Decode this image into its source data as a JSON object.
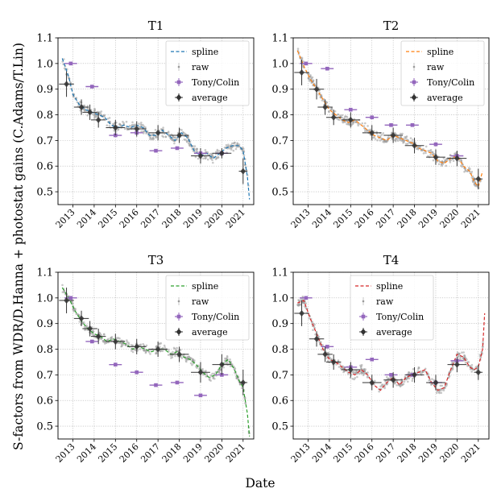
{
  "figure": {
    "ylabel": "S-factors from WDR/D.Hanna + photostat gains (C.Adams/T.Lin)",
    "xlabel": "Date",
    "legend": {
      "spline": "spline",
      "raw": "raw",
      "tony": "Tony/Colin",
      "average": "average"
    },
    "colors": {
      "raw": "#9a9a9a",
      "tony": "#9467bd",
      "average": "#333333",
      "grid": "#b0b0b0"
    }
  },
  "chart_data": [
    {
      "type": "scatter",
      "title": "T1",
      "spline_color": "#1f77b4",
      "legend_position": "top-right",
      "ylim": [
        0.45,
        1.1
      ],
      "xlim": [
        2012.3,
        2021.5
      ],
      "yticks": [
        "0.5",
        "0.6",
        "0.7",
        "0.8",
        "0.9",
        "1.0",
        "1.1"
      ],
      "xticks": [
        "2013",
        "2014",
        "2015",
        "2016",
        "2017",
        "2018",
        "2019",
        "2020",
        "2021"
      ],
      "grid": true,
      "series": [
        {
          "name": "spline",
          "kind": "line",
          "x": [
            2012.5,
            2012.8,
            2013.0,
            2013.3,
            2013.6,
            2013.9,
            2014.2,
            2014.5,
            2014.8,
            2015.1,
            2015.4,
            2015.7,
            2016.0,
            2016.3,
            2016.6,
            2016.9,
            2017.2,
            2017.5,
            2017.8,
            2018.1,
            2018.4,
            2018.7,
            2019.0,
            2019.3,
            2019.6,
            2019.9,
            2020.2,
            2020.5,
            2020.8,
            2021.0,
            2021.2,
            2021.3
          ],
          "y": [
            1.02,
            0.95,
            0.88,
            0.84,
            0.82,
            0.81,
            0.8,
            0.79,
            0.76,
            0.75,
            0.76,
            0.75,
            0.76,
            0.75,
            0.72,
            0.72,
            0.74,
            0.72,
            0.7,
            0.73,
            0.71,
            0.66,
            0.64,
            0.65,
            0.63,
            0.65,
            0.67,
            0.68,
            0.68,
            0.66,
            0.56,
            0.47
          ]
        },
        {
          "name": "Tony/Colin",
          "kind": "errorbar",
          "x": [
            2012.9,
            2013.9,
            2015.0,
            2016.0,
            2016.9,
            2017.9,
            2019.0,
            2020.0
          ],
          "y": [
            1.0,
            0.91,
            0.72,
            0.73,
            0.66,
            0.67,
            0.65,
            0.65
          ],
          "xerr": [
            0.3,
            0.3,
            0.3,
            0.3,
            0.3,
            0.3,
            0.3,
            0.3
          ]
        },
        {
          "name": "average",
          "kind": "errorbar",
          "x": [
            2012.7,
            2013.4,
            2013.8,
            2014.2,
            2015.0,
            2016.0,
            2017.0,
            2018.0,
            2019.0,
            2020.0,
            2021.0
          ],
          "y": [
            0.92,
            0.83,
            0.81,
            0.78,
            0.75,
            0.745,
            0.73,
            0.72,
            0.64,
            0.65,
            0.58
          ],
          "yerr": [
            0.05,
            0.03,
            0.03,
            0.03,
            0.03,
            0.03,
            0.03,
            0.03,
            0.03,
            0.02,
            0.05
          ],
          "xerr": [
            0.35,
            0.35,
            0.35,
            0.35,
            0.45,
            0.45,
            0.45,
            0.45,
            0.45,
            0.45,
            0.2
          ]
        }
      ]
    },
    {
      "type": "scatter",
      "title": "T2",
      "spline_color": "#ff7f0e",
      "legend_position": "top-right",
      "ylim": [
        0.45,
        1.1
      ],
      "xlim": [
        2012.3,
        2021.5
      ],
      "yticks": [
        "0.5",
        "0.6",
        "0.7",
        "0.8",
        "0.9",
        "1.0",
        "1.1"
      ],
      "xticks": [
        "2013",
        "2014",
        "2015",
        "2016",
        "2017",
        "2018",
        "2019",
        "2020",
        "2021"
      ],
      "grid": true,
      "series": [
        {
          "name": "spline",
          "kind": "line",
          "x": [
            2012.5,
            2012.8,
            2013.1,
            2013.4,
            2013.7,
            2014.0,
            2014.3,
            2014.6,
            2014.9,
            2015.2,
            2015.5,
            2015.8,
            2016.1,
            2016.4,
            2016.7,
            2017.0,
            2017.3,
            2017.6,
            2017.9,
            2018.2,
            2018.5,
            2018.8,
            2019.1,
            2019.4,
            2019.7,
            2020.0,
            2020.3,
            2020.6,
            2020.8,
            2021.0,
            2021.2
          ],
          "y": [
            1.05,
            0.99,
            0.94,
            0.9,
            0.86,
            0.82,
            0.8,
            0.78,
            0.77,
            0.78,
            0.76,
            0.74,
            0.72,
            0.71,
            0.7,
            0.72,
            0.71,
            0.7,
            0.69,
            0.67,
            0.66,
            0.65,
            0.62,
            0.61,
            0.63,
            0.64,
            0.6,
            0.58,
            0.54,
            0.52,
            0.58
          ]
        },
        {
          "name": "Tony/Colin",
          "kind": "errorbar",
          "x": [
            2012.9,
            2013.9,
            2015.0,
            2016.0,
            2016.9,
            2017.9,
            2019.0,
            2020.0
          ],
          "y": [
            1.0,
            0.98,
            0.82,
            0.79,
            0.76,
            0.76,
            0.685,
            0.64
          ],
          "xerr": [
            0.3,
            0.3,
            0.3,
            0.3,
            0.3,
            0.3,
            0.3,
            0.3
          ]
        },
        {
          "name": "average",
          "kind": "errorbar",
          "x": [
            2012.7,
            2013.4,
            2013.8,
            2014.2,
            2015.0,
            2016.0,
            2017.0,
            2018.0,
            2019.0,
            2020.0,
            2021.0
          ],
          "y": [
            0.965,
            0.9,
            0.83,
            0.79,
            0.78,
            0.73,
            0.72,
            0.68,
            0.635,
            0.63,
            0.55
          ],
          "yerr": [
            0.05,
            0.04,
            0.03,
            0.03,
            0.03,
            0.03,
            0.03,
            0.03,
            0.03,
            0.03,
            0.04
          ],
          "xerr": [
            0.35,
            0.35,
            0.35,
            0.35,
            0.45,
            0.45,
            0.45,
            0.45,
            0.45,
            0.45,
            0.2
          ]
        }
      ]
    },
    {
      "type": "scatter",
      "title": "T3",
      "spline_color": "#2ca02c",
      "legend_position": "top-right",
      "ylim": [
        0.45,
        1.1
      ],
      "xlim": [
        2012.3,
        2021.5
      ],
      "yticks": [
        "0.5",
        "0.6",
        "0.7",
        "0.8",
        "0.9",
        "1.0",
        "1.1"
      ],
      "xticks": [
        "2013",
        "2014",
        "2015",
        "2016",
        "2017",
        "2018",
        "2019",
        "2020",
        "2021"
      ],
      "grid": true,
      "series": [
        {
          "name": "spline",
          "kind": "line",
          "x": [
            2012.5,
            2012.8,
            2013.1,
            2013.4,
            2013.7,
            2014.0,
            2014.3,
            2014.6,
            2014.9,
            2015.2,
            2015.5,
            2015.8,
            2016.1,
            2016.4,
            2016.7,
            2017.0,
            2017.3,
            2017.6,
            2017.9,
            2018.2,
            2018.5,
            2018.8,
            2019.1,
            2019.4,
            2019.7,
            2020.0,
            2020.3,
            2020.6,
            2020.8,
            2021.0,
            2021.2,
            2021.3
          ],
          "y": [
            1.04,
            1.0,
            0.95,
            0.91,
            0.88,
            0.86,
            0.85,
            0.83,
            0.84,
            0.83,
            0.82,
            0.8,
            0.81,
            0.8,
            0.79,
            0.8,
            0.8,
            0.78,
            0.79,
            0.77,
            0.76,
            0.74,
            0.71,
            0.69,
            0.7,
            0.74,
            0.76,
            0.72,
            0.68,
            0.65,
            0.55,
            0.46
          ]
        },
        {
          "name": "Tony/Colin",
          "kind": "errorbar",
          "x": [
            2012.9,
            2013.9,
            2015.0,
            2016.0,
            2016.9,
            2017.9,
            2019.0,
            2020.0
          ],
          "y": [
            1.0,
            0.83,
            0.74,
            0.71,
            0.66,
            0.67,
            0.62,
            0.7
          ],
          "xerr": [
            0.3,
            0.3,
            0.3,
            0.3,
            0.3,
            0.3,
            0.3,
            0.3
          ]
        },
        {
          "name": "average",
          "kind": "errorbar",
          "x": [
            2012.7,
            2013.4,
            2013.8,
            2014.2,
            2015.0,
            2016.0,
            2017.0,
            2018.0,
            2019.0,
            2020.0,
            2021.0
          ],
          "y": [
            0.99,
            0.92,
            0.88,
            0.85,
            0.83,
            0.81,
            0.8,
            0.78,
            0.71,
            0.74,
            0.67
          ],
          "yerr": [
            0.05,
            0.03,
            0.03,
            0.03,
            0.03,
            0.03,
            0.03,
            0.03,
            0.04,
            0.04,
            0.05
          ],
          "xerr": [
            0.35,
            0.35,
            0.35,
            0.35,
            0.45,
            0.45,
            0.45,
            0.45,
            0.45,
            0.45,
            0.2
          ]
        }
      ]
    },
    {
      "type": "scatter",
      "title": "T4",
      "spline_color": "#d62728",
      "legend_position": "top-center",
      "ylim": [
        0.45,
        1.1
      ],
      "xlim": [
        2012.3,
        2021.5
      ],
      "yticks": [
        "0.5",
        "0.6",
        "0.7",
        "0.8",
        "0.9",
        "1.0",
        "1.1"
      ],
      "xticks": [
        "2013",
        "2014",
        "2015",
        "2016",
        "2017",
        "2018",
        "2019",
        "2020",
        "2021"
      ],
      "grid": true,
      "series": [
        {
          "name": "spline",
          "kind": "line",
          "x": [
            2012.5,
            2012.8,
            2013.1,
            2013.4,
            2013.7,
            2014.0,
            2014.3,
            2014.6,
            2014.9,
            2015.2,
            2015.5,
            2015.8,
            2016.1,
            2016.4,
            2016.7,
            2017.0,
            2017.3,
            2017.6,
            2017.9,
            2018.2,
            2018.5,
            2018.8,
            2019.1,
            2019.4,
            2019.7,
            2020.0,
            2020.3,
            2020.6,
            2020.8,
            2021.0,
            2021.2,
            2021.3
          ],
          "y": [
            0.98,
            0.99,
            0.92,
            0.86,
            0.8,
            0.76,
            0.75,
            0.73,
            0.71,
            0.7,
            0.72,
            0.7,
            0.66,
            0.64,
            0.67,
            0.69,
            0.66,
            0.69,
            0.7,
            0.71,
            0.72,
            0.67,
            0.64,
            0.65,
            0.72,
            0.78,
            0.77,
            0.73,
            0.72,
            0.73,
            0.8,
            0.94
          ]
        },
        {
          "name": "Tony/Colin",
          "kind": "errorbar",
          "x": [
            2012.9,
            2013.9,
            2015.0,
            2016.0,
            2016.9,
            2017.9,
            2019.0,
            2020.0
          ],
          "y": [
            1.0,
            0.81,
            0.73,
            0.76,
            0.7,
            0.7,
            0.67,
            0.755
          ],
          "xerr": [
            0.3,
            0.3,
            0.3,
            0.3,
            0.3,
            0.3,
            0.3,
            0.3
          ]
        },
        {
          "name": "average",
          "kind": "errorbar",
          "x": [
            2012.7,
            2013.4,
            2013.8,
            2014.2,
            2015.0,
            2016.0,
            2017.0,
            2018.0,
            2019.0,
            2020.0,
            2021.0
          ],
          "y": [
            0.94,
            0.84,
            0.78,
            0.75,
            0.72,
            0.67,
            0.68,
            0.7,
            0.67,
            0.74,
            0.71
          ],
          "yerr": [
            0.05,
            0.03,
            0.03,
            0.03,
            0.03,
            0.03,
            0.03,
            0.03,
            0.03,
            0.03,
            0.03
          ],
          "xerr": [
            0.35,
            0.35,
            0.35,
            0.35,
            0.45,
            0.45,
            0.45,
            0.45,
            0.45,
            0.45,
            0.2
          ]
        }
      ]
    }
  ]
}
